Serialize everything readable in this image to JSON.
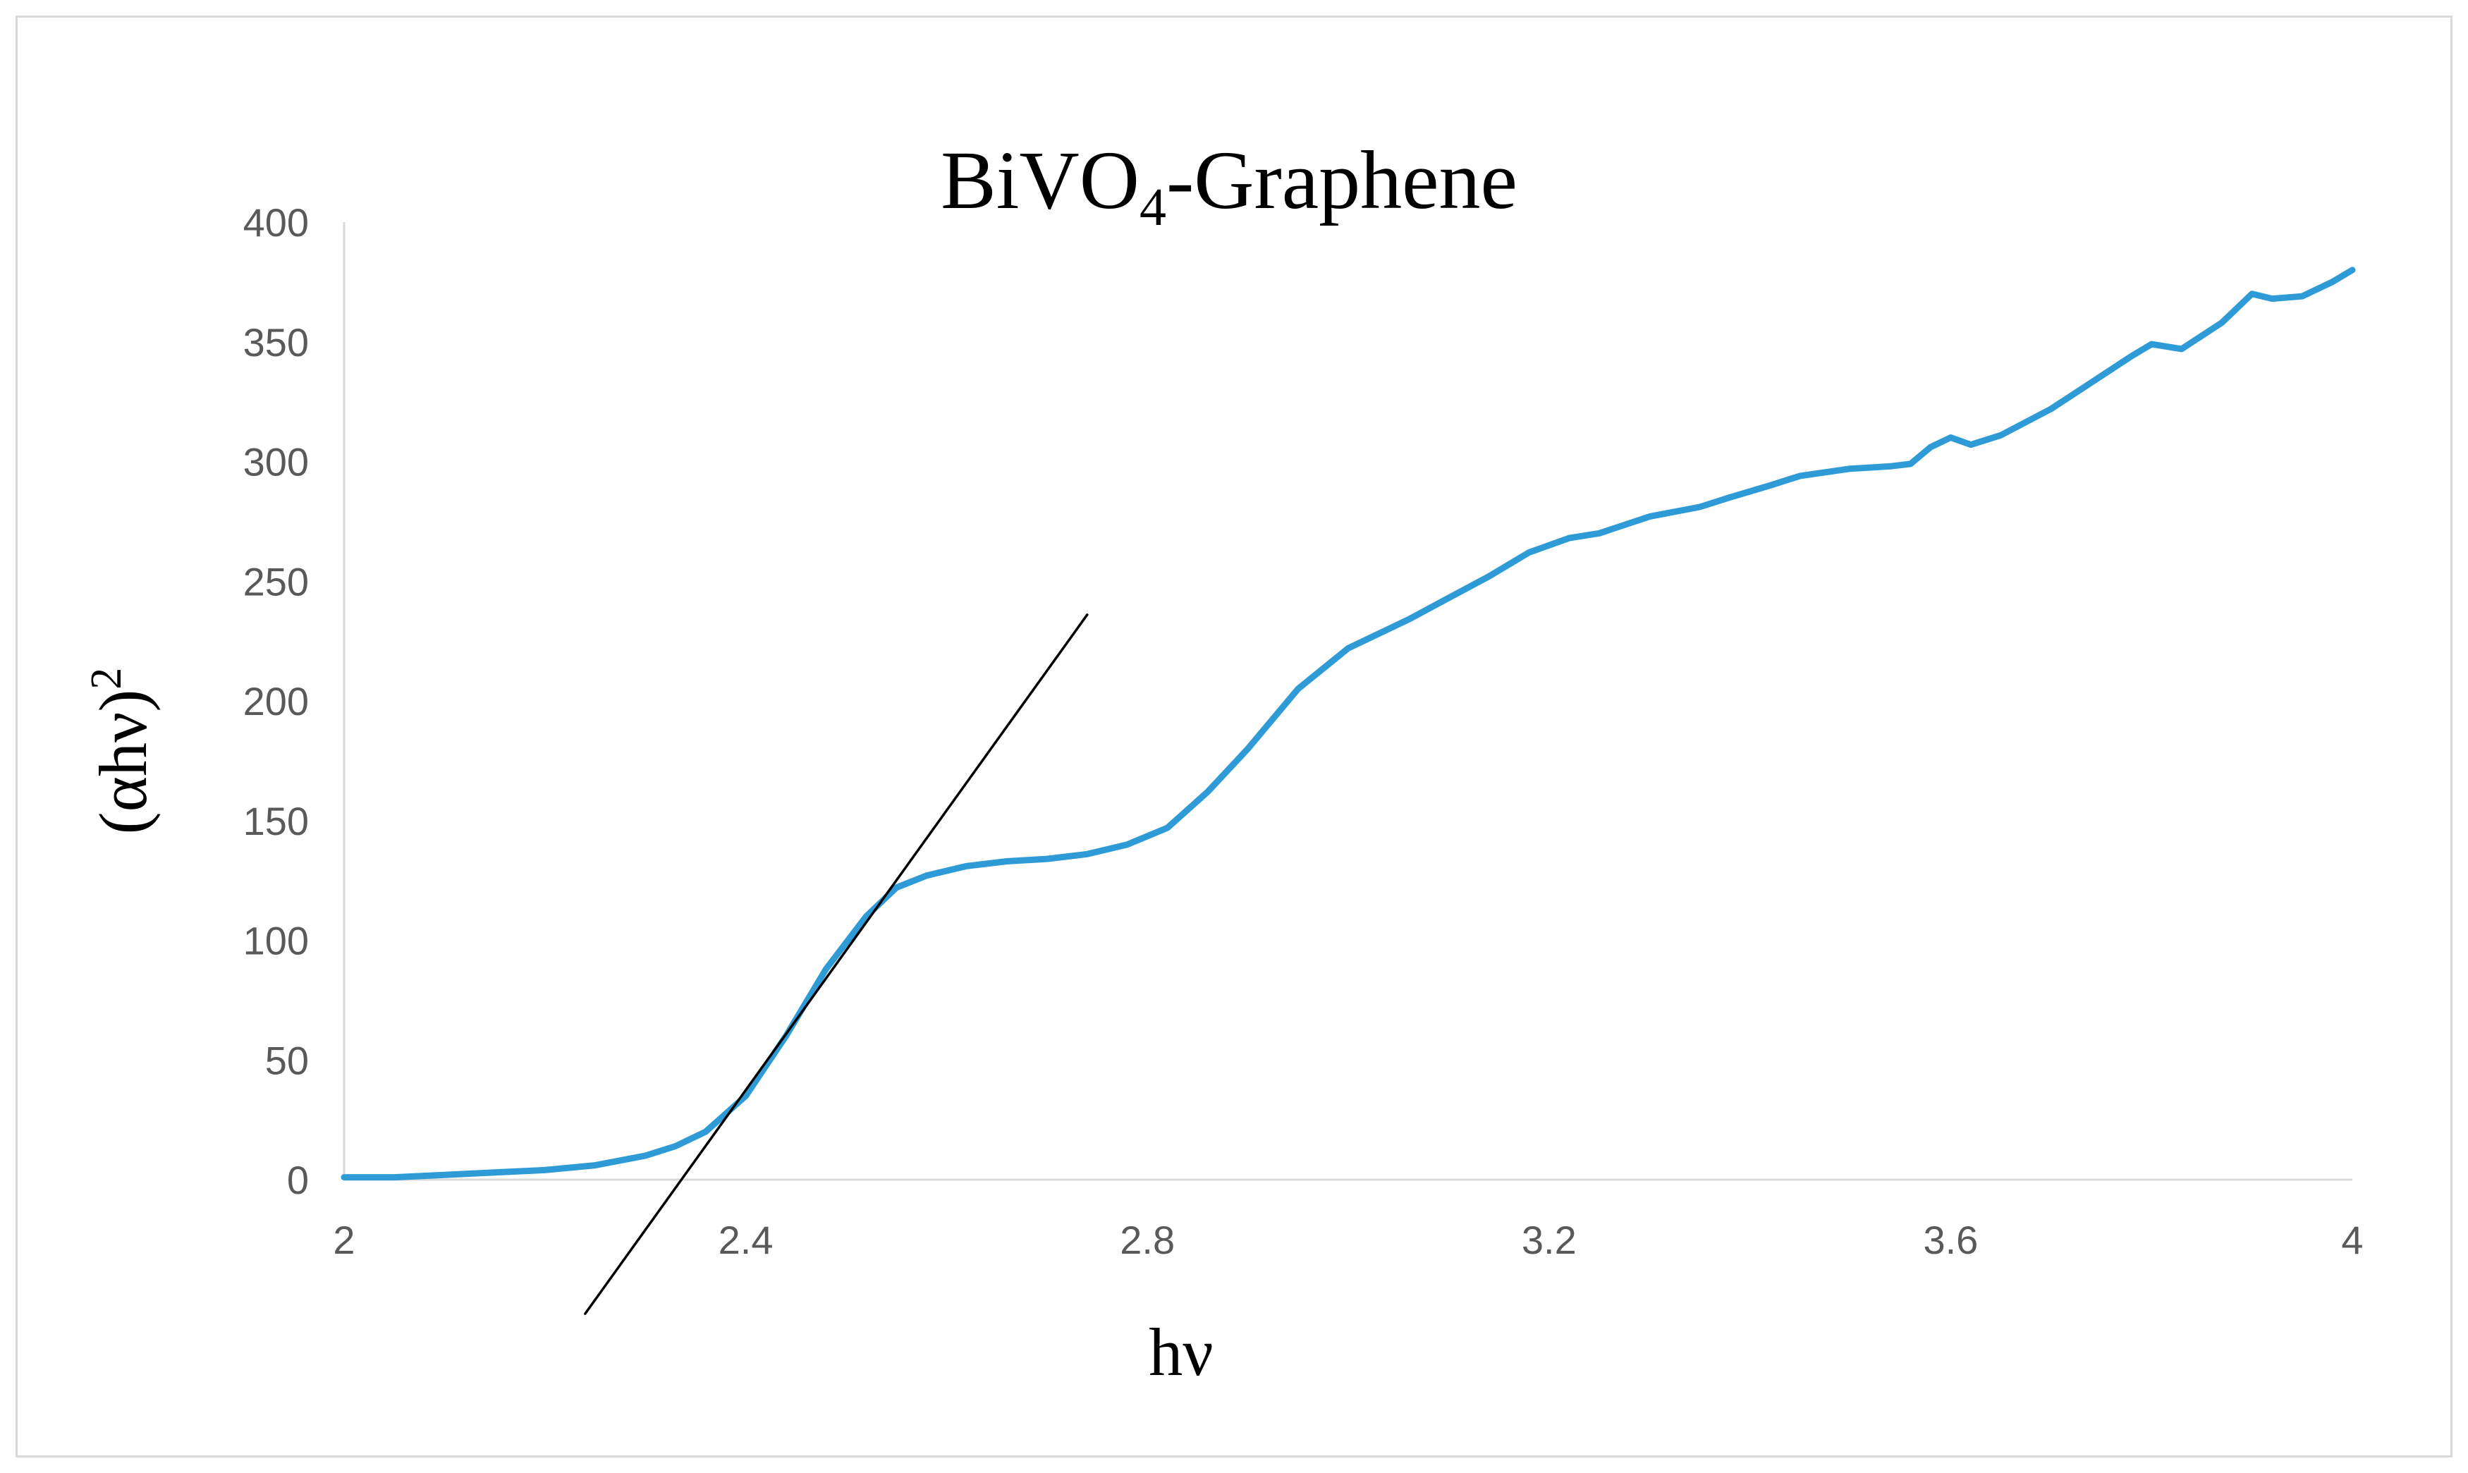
{
  "chart_data": {
    "type": "line",
    "title": "BiVO",
    "title_subscript": "4",
    "title_suffix": "-Graphene",
    "xlabel": "hν",
    "ylabel": "(αhν)",
    "ylabel_superscript": "2",
    "xlim": [
      2,
      4
    ],
    "ylim": [
      0,
      400
    ],
    "x_ticks": [
      "2",
      "2.4",
      "2.8",
      "3.2",
      "3.6",
      "4"
    ],
    "y_ticks": [
      "0",
      "50",
      "100",
      "150",
      "200",
      "250",
      "300",
      "350",
      "400"
    ],
    "grid": false,
    "legend": "none",
    "series": [
      {
        "color": "#2e9bd6",
        "x": [
          2.0,
          2.05,
          2.1,
          2.15,
          2.2,
          2.25,
          2.3,
          2.33,
          2.36,
          2.4,
          2.44,
          2.48,
          2.52,
          2.55,
          2.58,
          2.62,
          2.66,
          2.7,
          2.74,
          2.78,
          2.82,
          2.86,
          2.9,
          2.95,
          3.0,
          3.03,
          3.06,
          3.1,
          3.14,
          3.18,
          3.22,
          3.25,
          3.3,
          3.35,
          3.38,
          3.42,
          3.45,
          3.5,
          3.54,
          3.56,
          3.58,
          3.6,
          3.62,
          3.65,
          3.7,
          3.74,
          3.78,
          3.8,
          3.83,
          3.87,
          3.9,
          3.92,
          3.95,
          3.98,
          4.0
        ],
        "y": [
          1,
          1,
          2,
          3,
          4,
          6,
          10,
          14,
          20,
          35,
          60,
          88,
          110,
          122,
          127,
          131,
          133,
          134,
          136,
          140,
          147,
          162,
          180,
          205,
          222,
          228,
          234,
          243,
          252,
          262,
          268,
          270,
          277,
          281,
          285,
          290,
          294,
          297,
          298,
          299,
          306,
          310,
          307,
          311,
          322,
          333,
          344,
          349,
          347,
          358,
          370,
          368,
          369,
          375,
          380
        ]
      },
      {
        "color": "#000000",
        "x": [
          2.24,
          2.74
        ],
        "y": [
          -56,
          236
        ]
      }
    ]
  }
}
